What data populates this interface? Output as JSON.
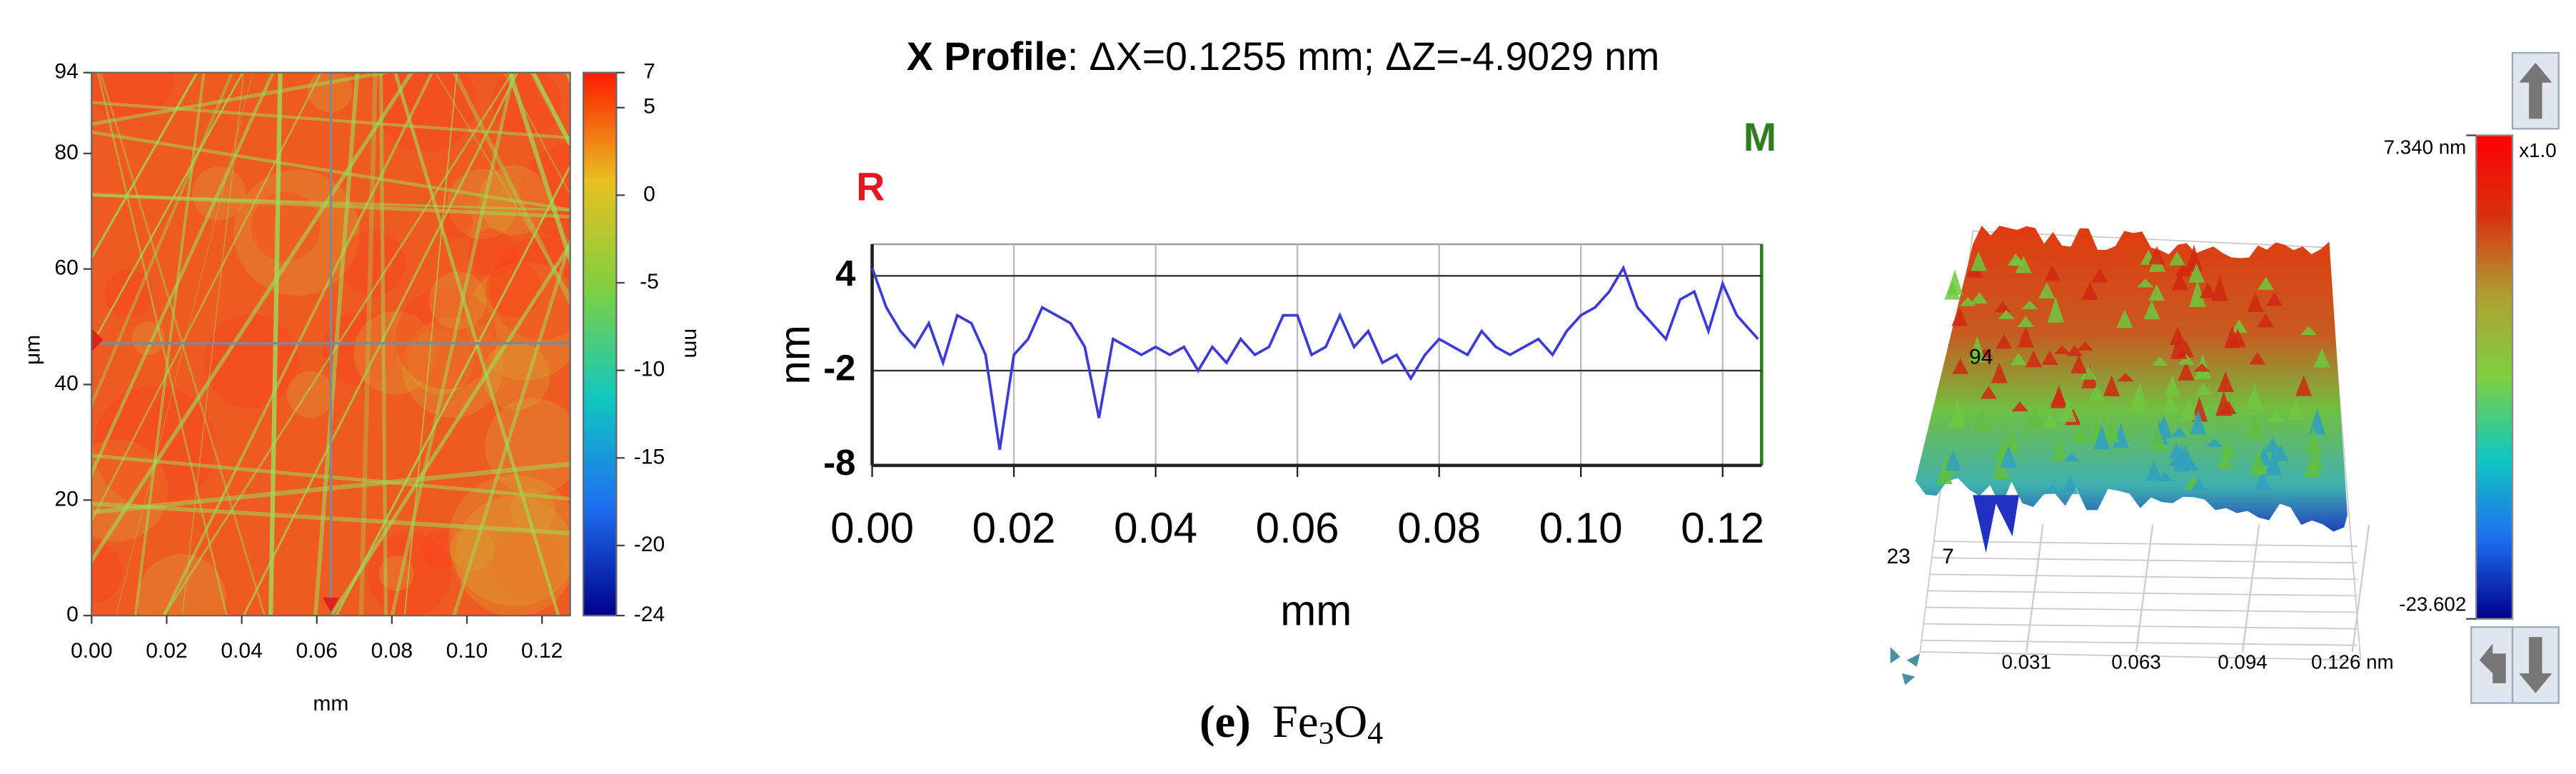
{
  "chart_data": [
    {
      "type": "heatmap",
      "xlabel": "mm",
      "ylabel": "μm",
      "xlim": [
        0,
        0.1275
      ],
      "ylim": [
        0,
        94
      ],
      "xticks": [
        {
          "value": 0,
          "label": "0.00"
        },
        {
          "value": 0.02,
          "label": "0.02"
        },
        {
          "value": 0.04,
          "label": "0.04"
        },
        {
          "value": 0.06,
          "label": "0.06"
        },
        {
          "value": 0.08,
          "label": "0.08"
        },
        {
          "value": 0.1,
          "label": "0.10"
        },
        {
          "value": 0.12,
          "label": "0.12"
        }
      ],
      "yticks": [
        0,
        20,
        40,
        60,
        80,
        94
      ],
      "colorbar": {
        "label": "nm",
        "lim": [
          -24,
          7
        ],
        "ticks": [
          7,
          5,
          0,
          -5,
          -10,
          -15,
          -20,
          -24
        ],
        "colors": [
          "#00008b",
          "#1e6ff0",
          "#10c8c0",
          "#7ed040",
          "#e8c020",
          "#ff1a00"
        ]
      }
    },
    {
      "type": "line",
      "title": "X Profile",
      "subtitle": ": ΔX=0.1255 mm; ΔZ=-4.9029 nm",
      "xlabel": "mm",
      "ylabel": "nm",
      "annotations": [
        {
          "text": "R",
          "color": "#e8141e"
        },
        {
          "text": "M",
          "color": "#2e7d1e"
        }
      ],
      "xlim": [
        0,
        0.1255
      ],
      "ylim": [
        -8,
        6
      ],
      "xticks": [
        {
          "value": 0,
          "label": "0.00"
        },
        {
          "value": 0.02,
          "label": "0.02"
        },
        {
          "value": 0.04,
          "label": "0.04"
        },
        {
          "value": 0.06,
          "label": "0.06"
        },
        {
          "value": 0.08,
          "label": "0.08"
        },
        {
          "value": 0.1,
          "label": "0.10"
        },
        {
          "value": 0.12,
          "label": "0.12"
        }
      ],
      "yticks": [
        4,
        -2,
        -8
      ],
      "grid": true,
      "x": [
        0,
        0.002,
        0.004,
        0.006,
        0.008,
        0.01,
        0.012,
        0.014,
        0.016,
        0.018,
        0.02,
        0.022,
        0.024,
        0.026,
        0.028,
        0.03,
        0.032,
        0.034,
        0.036,
        0.038,
        0.04,
        0.042,
        0.044,
        0.046,
        0.048,
        0.05,
        0.052,
        0.054,
        0.056,
        0.058,
        0.06,
        0.062,
        0.064,
        0.066,
        0.068,
        0.07,
        0.072,
        0.074,
        0.076,
        0.078,
        0.08,
        0.082,
        0.084,
        0.086,
        0.088,
        0.09,
        0.092,
        0.094,
        0.096,
        0.098,
        0.1,
        0.102,
        0.104,
        0.106,
        0.108,
        0.11,
        0.112,
        0.114,
        0.116,
        0.118,
        0.12,
        0.122,
        0.124,
        0.125
      ],
      "series": [
        {
          "color": "#3b3bd6",
          "values": [
            4.5,
            2,
            0.5,
            -0.5,
            1,
            -1.5,
            1.5,
            1,
            -1,
            -7,
            -1,
            0,
            2,
            1.5,
            1,
            -0.5,
            -5,
            0,
            -0.5,
            -1,
            -0.5,
            -1,
            -0.5,
            -2,
            -0.5,
            -1.5,
            0,
            -1,
            -0.5,
            1.5,
            1.5,
            -1,
            -0.5,
            1.5,
            -0.5,
            0.5,
            -1.5,
            -1,
            -2.5,
            -1,
            0,
            -0.5,
            -1,
            0.5,
            -0.5,
            -1,
            -0.5,
            0,
            -1,
            0.5,
            1.5,
            2,
            3,
            4.5,
            2,
            1,
            0,
            2.5,
            3,
            0.5,
            3.5,
            1.5,
            0.5,
            0
          ]
        }
      ]
    },
    {
      "type": "surface",
      "xlim": [
        0,
        0.126
      ],
      "xticks": [
        {
          "value": 0.031,
          "label": "0.031"
        },
        {
          "value": 0.063,
          "label": "0.063"
        },
        {
          "value": 0.094,
          "label": "0.094"
        },
        {
          "value": 0.126,
          "label": "0.126 nm"
        }
      ],
      "axis_texts": [
        "94",
        "23",
        "7"
      ],
      "colorbar": {
        "lim": [
          -23.602,
          7.34
        ],
        "ticks": [
          {
            "value": 7.34,
            "label": "7.340 nm"
          },
          {
            "value": -23.602,
            "label": "-23.602"
          }
        ],
        "scale_label": "x1.0",
        "colors": [
          "#00008b",
          "#1e6ff0",
          "#10c8c0",
          "#7ed040",
          "#b0a030",
          "#d83010",
          "#ff0000"
        ]
      }
    }
  ],
  "caption": {
    "label": "(e)",
    "formula": [
      "Fe",
      "3",
      "O",
      "4"
    ]
  }
}
